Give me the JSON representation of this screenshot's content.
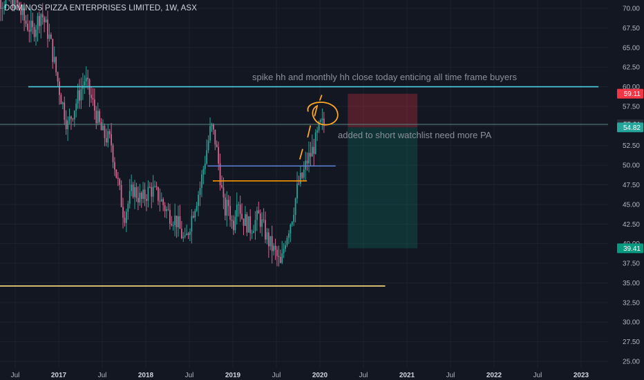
{
  "header": {
    "title": "DOMINOS PIZZA ENTERPRISES LIMITED, 1W, ASX"
  },
  "chart_data": {
    "type": "candlestick",
    "symbol": "DMP",
    "interval": "1W",
    "exchange": "ASX",
    "y_ticks": [
      "70.00",
      "67.50",
      "65.00",
      "62.50",
      "60.00",
      "57.50",
      "55.00",
      "52.50",
      "50.00",
      "47.50",
      "45.00",
      "42.50",
      "40.00",
      "37.50",
      "35.00",
      "32.50",
      "30.00",
      "27.50",
      "25.00"
    ],
    "ylim": [
      25,
      70
    ],
    "x_ticks": [
      {
        "label": "Jul",
        "bold": false
      },
      {
        "label": "2017",
        "bold": true
      },
      {
        "label": "Jul",
        "bold": false
      },
      {
        "label": "2018",
        "bold": true
      },
      {
        "label": "Jul",
        "bold": false
      },
      {
        "label": "2019",
        "bold": true
      },
      {
        "label": "Jul",
        "bold": false
      },
      {
        "label": "2020",
        "bold": true
      },
      {
        "label": "Jul",
        "bold": false
      },
      {
        "label": "2021",
        "bold": true
      },
      {
        "label": "Jul",
        "bold": false
      },
      {
        "label": "2022",
        "bold": true
      },
      {
        "label": "Jul",
        "bold": false
      },
      {
        "label": "2023",
        "bold": true
      }
    ],
    "price_series": [
      [
        2016.5,
        71.0
      ],
      [
        2016.6,
        68.5
      ],
      [
        2016.7,
        67.0
      ],
      [
        2016.8,
        69.5
      ],
      [
        2016.9,
        66.0
      ],
      [
        2017.0,
        60.0
      ],
      [
        2017.1,
        55.0
      ],
      [
        2017.2,
        58.0
      ],
      [
        2017.3,
        61.0
      ],
      [
        2017.4,
        57.5
      ],
      [
        2017.5,
        54.0
      ],
      [
        2017.6,
        53.0
      ],
      [
        2017.65,
        49.5
      ],
      [
        2017.75,
        43.5
      ],
      [
        2017.85,
        47.0
      ],
      [
        2017.95,
        45.5
      ],
      [
        2018.05,
        47.0
      ],
      [
        2018.15,
        46.0
      ],
      [
        2018.25,
        44.0
      ],
      [
        2018.35,
        43.0
      ],
      [
        2018.45,
        40.0
      ],
      [
        2018.55,
        44.5
      ],
      [
        2018.62,
        47.0
      ],
      [
        2018.7,
        52.0
      ],
      [
        2018.75,
        55.0
      ],
      [
        2018.8,
        53.0
      ],
      [
        2018.85,
        49.0
      ],
      [
        2018.9,
        44.0
      ],
      [
        2018.95,
        45.0
      ],
      [
        2019.0,
        42.0
      ],
      [
        2019.05,
        46.5
      ],
      [
        2019.1,
        43.5
      ],
      [
        2019.2,
        42.0
      ],
      [
        2019.3,
        43.5
      ],
      [
        2019.4,
        40.5
      ],
      [
        2019.5,
        38.5
      ],
      [
        2019.55,
        37.0
      ],
      [
        2019.6,
        40.5
      ],
      [
        2019.68,
        43.5
      ],
      [
        2019.75,
        47.5
      ],
      [
        2019.8,
        48.5
      ],
      [
        2019.85,
        50.5
      ],
      [
        2019.9,
        51.5
      ],
      [
        2019.95,
        53.0
      ],
      [
        2020.0,
        55.0
      ],
      [
        2020.05,
        55.21
      ]
    ],
    "horizontal_lines": [
      {
        "name": "resistance-60",
        "y": 60.0,
        "x1": 2016.65,
        "x2": 2023.2,
        "color": "#4dd0e1"
      },
      {
        "name": "support-34.6",
        "y": 34.6,
        "x1": 2016.3,
        "x2": 2020.75,
        "color": "#ffe082"
      },
      {
        "name": "level-49.9",
        "y": 49.9,
        "x1": 2018.71,
        "x2": 2020.18,
        "color": "#5b7fd6"
      },
      {
        "name": "level-48.0",
        "y": 48.0,
        "x1": 2018.77,
        "x2": 2019.85,
        "color": "#ff9800"
      },
      {
        "name": "current-price-line",
        "y": 55.21,
        "x1": 2016.3,
        "x2": 2023.55,
        "color": "#5e8a86"
      }
    ],
    "position": {
      "stop": 59.11,
      "entry": 54.82,
      "target": 39.41,
      "x1": 2020.32,
      "x2": 2021.12,
      "stop_color": "#f23645",
      "target_color": "#089981"
    },
    "price_tags": [
      {
        "label": "59.11",
        "y": 59.11,
        "bg": "#f23645"
      },
      {
        "label": "55.21",
        "y": 55.21,
        "bg": "#2a2e39"
      },
      {
        "label": "54.82",
        "y": 54.82,
        "bg": "#26a69a"
      },
      {
        "label": "39.41",
        "y": 39.41,
        "bg": "#089981"
      }
    ],
    "annotations": [
      {
        "name": "note-top",
        "text": "spike hh and monthly hh close today enticing  all time frame buyers"
      },
      {
        "name": "note-watchlist",
        "text": "added to short watchlist need more PA"
      }
    ]
  }
}
